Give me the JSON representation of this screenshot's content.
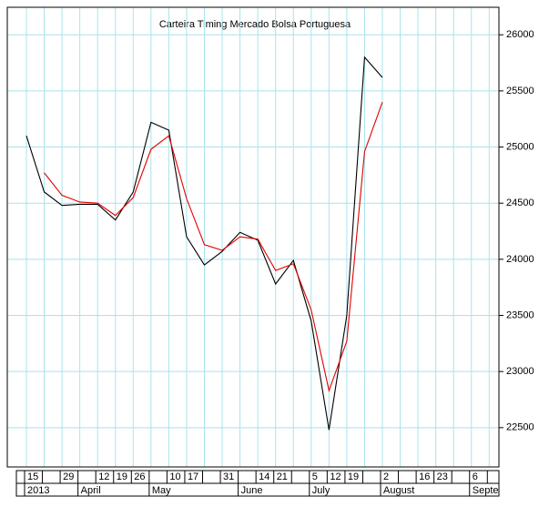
{
  "chart_data": {
    "type": "line",
    "title": "Carteira Timing Mercado Bolsa Portuguesa",
    "categories": [
      "15",
      null,
      "29",
      null,
      "12",
      "19",
      "26",
      null,
      "10",
      "17",
      null,
      "31",
      null,
      "14",
      "21",
      null,
      "5",
      "12",
      "19",
      null,
      "2",
      null,
      "16",
      "23",
      null,
      "6",
      null
    ],
    "month_labels": [
      "2013",
      null,
      null,
      "April",
      null,
      null,
      null,
      "May",
      null,
      null,
      null,
      null,
      "June",
      null,
      null,
      null,
      "July",
      null,
      null,
      null,
      "August",
      null,
      null,
      null,
      null,
      "Septe",
      null
    ],
    "series": [
      {
        "color": "#000000",
        "values": [
          25100,
          24600,
          24480,
          24490,
          24490,
          24350,
          24600,
          25220,
          25150,
          24200,
          23950,
          24070,
          24240,
          24170,
          23780,
          23990,
          23450,
          22480,
          23500,
          25800,
          25620,
          null,
          null,
          null,
          null,
          null,
          null
        ]
      },
      {
        "color": "#e00000",
        "values": [
          null,
          24770,
          24570,
          24510,
          24500,
          24390,
          24550,
          24980,
          25100,
          24540,
          24130,
          24080,
          24200,
          24180,
          23900,
          23960,
          23550,
          22830,
          23270,
          24960,
          25400,
          null,
          null,
          null,
          null,
          null,
          null
        ]
      }
    ],
    "ylim": [
      22150,
      26245
    ],
    "yticks": [
      22500,
      23000,
      23500,
      24000,
      24500,
      25000,
      25500,
      26000
    ],
    "grid": true,
    "grid_color": "#a8e4ec"
  }
}
